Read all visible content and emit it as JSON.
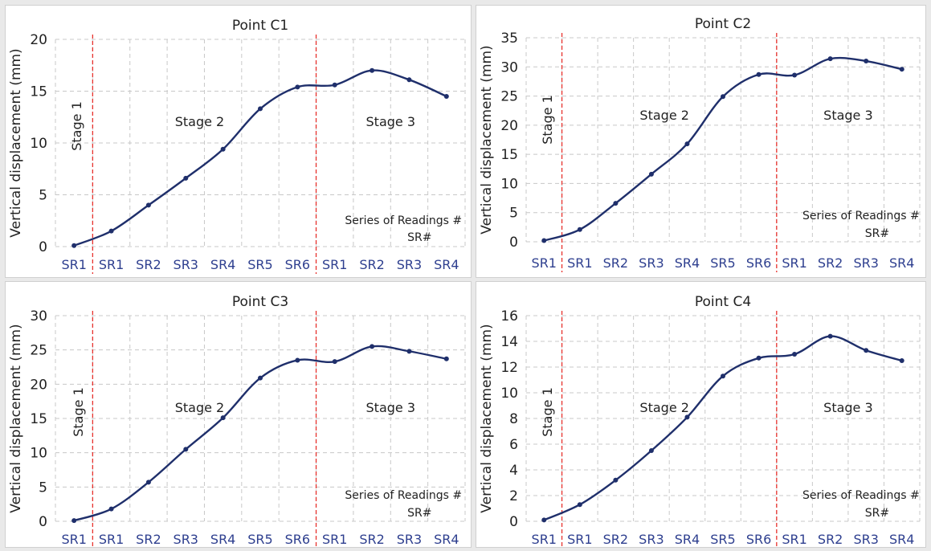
{
  "colors": {
    "line": "#1f2f6b",
    "marker": "#1f2f6b",
    "stage_divider": "#e8322d",
    "grid": "#c8c8c8",
    "category_label": "#2e3f8f",
    "text": "#222222"
  },
  "chart_data": [
    {
      "type": "line",
      "title": "Point C1",
      "ylabel": "Vertical displacement (mm)",
      "categories": [
        "SR1",
        "SR1",
        "SR2",
        "SR3",
        "SR4",
        "SR5",
        "SR6",
        "SR1",
        "SR2",
        "SR3",
        "SR4"
      ],
      "values": [
        0.1,
        1.5,
        4.0,
        6.6,
        9.4,
        13.3,
        15.4,
        15.6,
        17.0,
        16.1,
        14.5
      ],
      "ylim": [
        0,
        20
      ],
      "yticks": [
        0,
        5,
        10,
        15,
        20
      ],
      "grid": true,
      "stages": [
        "Stage 1",
        "Stage 2",
        "Stage 3"
      ],
      "stage_boundaries_after_index": [
        0,
        6
      ],
      "annotation": [
        "Series of Readings #",
        "SR#"
      ]
    },
    {
      "type": "line",
      "title": "Point C2",
      "ylabel": "Vertical displacement (mm)",
      "categories": [
        "SR1",
        "SR1",
        "SR2",
        "SR3",
        "SR4",
        "SR5",
        "SR6",
        "SR1",
        "SR2",
        "SR3",
        "SR4"
      ],
      "values": [
        0.2,
        2.1,
        6.6,
        11.6,
        16.8,
        24.9,
        28.7,
        28.6,
        31.4,
        31.0,
        29.6
      ],
      "ylim": [
        0,
        35
      ],
      "yticks": [
        0,
        5,
        10,
        15,
        20,
        25,
        30,
        35
      ],
      "grid": true,
      "stages": [
        "Stage 1",
        "Stage 2",
        "Stage 3"
      ],
      "stage_boundaries_after_index": [
        0,
        6
      ],
      "annotation": [
        "Series of Readings #",
        "SR#"
      ]
    },
    {
      "type": "line",
      "title": "Point C3",
      "ylabel": "Vertical displacement (mm)",
      "categories": [
        "SR1",
        "SR1",
        "SR2",
        "SR3",
        "SR4",
        "SR5",
        "SR6",
        "SR1",
        "SR2",
        "SR3",
        "SR4"
      ],
      "values": [
        0.1,
        1.8,
        5.7,
        10.5,
        15.1,
        20.9,
        23.5,
        23.3,
        25.5,
        24.8,
        23.7
      ],
      "ylim": [
        0,
        30
      ],
      "yticks": [
        0,
        5,
        10,
        15,
        20,
        25,
        30
      ],
      "grid": true,
      "stages": [
        "Stage 1",
        "Stage 2",
        "Stage 3"
      ],
      "stage_boundaries_after_index": [
        0,
        6
      ],
      "annotation": [
        "Series of Readings #",
        "SR#"
      ]
    },
    {
      "type": "line",
      "title": "Point C4",
      "ylabel": "Vertical displacement (mm)",
      "categories": [
        "SR1",
        "SR1",
        "SR2",
        "SR3",
        "SR4",
        "SR5",
        "SR6",
        "SR1",
        "SR2",
        "SR3",
        "SR4"
      ],
      "values": [
        0.1,
        1.3,
        3.2,
        5.5,
        8.1,
        11.3,
        12.7,
        13.0,
        14.4,
        13.3,
        12.5
      ],
      "ylim": [
        0,
        16
      ],
      "yticks": [
        0,
        2,
        4,
        6,
        8,
        10,
        12,
        14,
        16
      ],
      "grid": true,
      "stages": [
        "Stage 1",
        "Stage 2",
        "Stage 3"
      ],
      "stage_boundaries_after_index": [
        0,
        6
      ],
      "annotation": [
        "Series of Readings #",
        "SR#"
      ]
    }
  ]
}
